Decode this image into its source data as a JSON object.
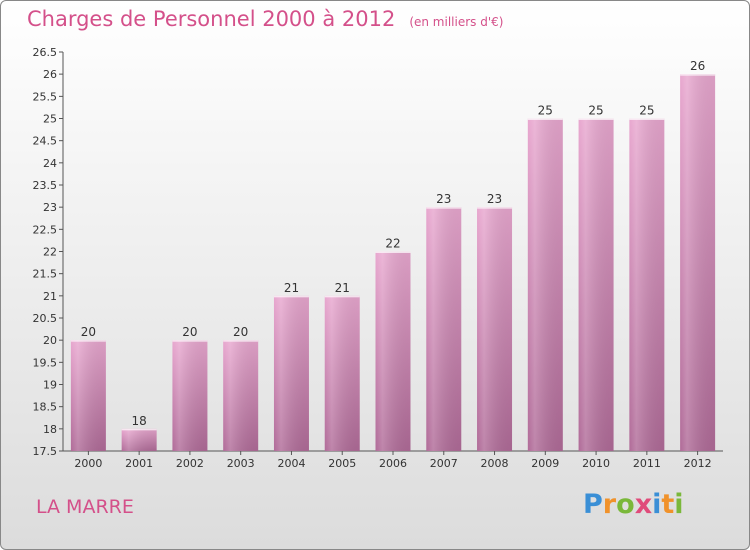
{
  "header": {
    "title": "Charges de Personnel 2000 à 2012",
    "subtitle": "(en milliers d'€)"
  },
  "footer": {
    "location": "LA MARRE",
    "brand_letters": [
      "P",
      "r",
      "o",
      "x",
      "i",
      "t",
      "i"
    ],
    "brand_colors": [
      "#3a8fd6",
      "#f0922b",
      "#7ab83a",
      "#e04b7a",
      "#3a8fd6",
      "#f0922b",
      "#7ab83a"
    ]
  },
  "colors": {
    "bar_top": "#e8a7cf",
    "bar_bottom": "#b06b98",
    "title": "#d4508a"
  },
  "chart_data": {
    "type": "bar",
    "title": "Charges de Personnel 2000 à 2012",
    "subtitle": "(en milliers d'€)",
    "categories": [
      "2000",
      "2001",
      "2002",
      "2003",
      "2004",
      "2005",
      "2006",
      "2007",
      "2008",
      "2009",
      "2010",
      "2011",
      "2012"
    ],
    "values": [
      20,
      18,
      20,
      20,
      21,
      21,
      22,
      23,
      23,
      25,
      25,
      25,
      26
    ],
    "value_labels": [
      "20",
      "18",
      "20",
      "20",
      "21",
      "21",
      "22",
      "23",
      "23",
      "25",
      "25",
      "25",
      "26"
    ],
    "ylim": [
      17.5,
      26.5
    ],
    "yticks": [
      "17.5",
      "18",
      "18.5",
      "19",
      "19.5",
      "20",
      "20.5",
      "21",
      "21.5",
      "22",
      "22.5",
      "23",
      "23.5",
      "24",
      "24.5",
      "25",
      "25.5",
      "26",
      "26.5"
    ],
    "grid": false,
    "legend": "none"
  }
}
